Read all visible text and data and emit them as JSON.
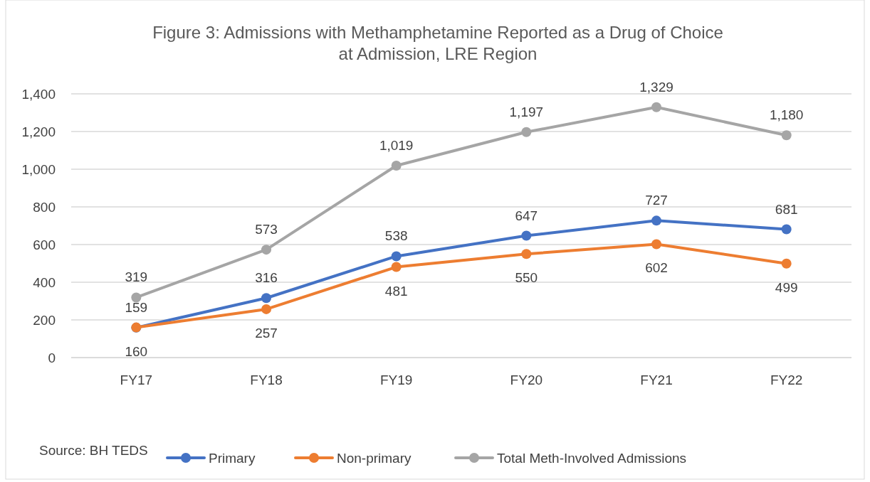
{
  "chart_data": {
    "type": "line",
    "title": "Figure 3: Admissions with Methamphetamine Reported as a Drug of Choice at Admission, LRE Region",
    "categories": [
      "FY17",
      "FY18",
      "FY19",
      "FY20",
      "FY21",
      "FY22"
    ],
    "series": [
      {
        "name": "Primary",
        "color": "#4472c4",
        "values": [
          159,
          316,
          538,
          647,
          727,
          681
        ],
        "value_labels": [
          "159",
          "316",
          "538",
          "647",
          "727",
          "681"
        ]
      },
      {
        "name": "Non-primary",
        "color": "#ed7d31",
        "values": [
          160,
          257,
          481,
          550,
          602,
          499
        ],
        "value_labels": [
          "160",
          "257",
          "481",
          "550",
          "602",
          "499"
        ]
      },
      {
        "name": "Total Meth-Involved Admissions",
        "color": "#a5a5a5",
        "values": [
          319,
          573,
          1019,
          1197,
          1329,
          1180
        ],
        "value_labels": [
          "319",
          "573",
          "1,019",
          "1,197",
          "1,329",
          "1,180"
        ]
      }
    ],
    "ylim": [
      0,
      1400
    ],
    "yticks": [
      0,
      200,
      400,
      600,
      800,
      {
        "value": 1000,
        "label": "1,000"
      },
      {
        "value": 1200,
        "label": "1,200"
      },
      {
        "value": 1400,
        "label": "1,400"
      }
    ],
    "grid": "y",
    "legend": "bottom",
    "marker": "circle",
    "line_style": "solid",
    "annotations": [
      "Source: BH TEDS"
    ]
  }
}
